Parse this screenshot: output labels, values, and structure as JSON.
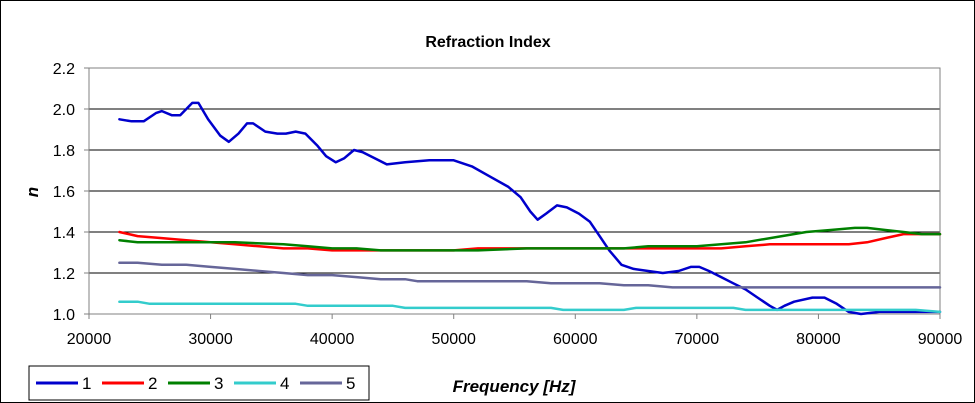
{
  "chart_data": {
    "type": "line",
    "title": "Refraction Index",
    "xlabel": "Frequency [Hz]",
    "ylabel": "n",
    "xlim": [
      20000,
      90000
    ],
    "ylim": [
      1.0,
      2.2
    ],
    "x_ticks": [
      20000,
      30000,
      40000,
      50000,
      60000,
      70000,
      80000,
      90000
    ],
    "y_ticks": [
      1.0,
      1.2,
      1.4,
      1.6,
      1.8,
      2.0,
      2.2
    ],
    "x_tick_labels": [
      "20000",
      "30000",
      "40000",
      "50000",
      "60000",
      "70000",
      "80000",
      "90000"
    ],
    "y_tick_labels": [
      "1.0",
      "1.2",
      "1.4",
      "1.6",
      "1.8",
      "2.0",
      "2.2"
    ],
    "grid": "horizontal",
    "legend_position": "bottom-left",
    "series": [
      {
        "name": "1",
        "color": "#0000cc",
        "points": [
          [
            22500,
            1.95
          ],
          [
            23500,
            1.94
          ],
          [
            24500,
            1.94
          ],
          [
            25500,
            1.98
          ],
          [
            26000,
            1.99
          ],
          [
            26800,
            1.97
          ],
          [
            27500,
            1.97
          ],
          [
            28500,
            2.03
          ],
          [
            29000,
            2.03
          ],
          [
            29800,
            1.95
          ],
          [
            30800,
            1.87
          ],
          [
            31500,
            1.84
          ],
          [
            32300,
            1.88
          ],
          [
            33000,
            1.93
          ],
          [
            33500,
            1.93
          ],
          [
            34500,
            1.89
          ],
          [
            35500,
            1.88
          ],
          [
            36200,
            1.88
          ],
          [
            37000,
            1.89
          ],
          [
            37800,
            1.88
          ],
          [
            38800,
            1.82
          ],
          [
            39500,
            1.77
          ],
          [
            40300,
            1.74
          ],
          [
            41000,
            1.76
          ],
          [
            41800,
            1.8
          ],
          [
            42500,
            1.79
          ],
          [
            43500,
            1.76
          ],
          [
            44500,
            1.73
          ],
          [
            46000,
            1.74
          ],
          [
            48000,
            1.75
          ],
          [
            50000,
            1.75
          ],
          [
            51500,
            1.72
          ],
          [
            53000,
            1.67
          ],
          [
            54500,
            1.62
          ],
          [
            55500,
            1.57
          ],
          [
            56300,
            1.5
          ],
          [
            56900,
            1.46
          ],
          [
            57600,
            1.49
          ],
          [
            58500,
            1.53
          ],
          [
            59300,
            1.52
          ],
          [
            60300,
            1.49
          ],
          [
            61200,
            1.45
          ],
          [
            62000,
            1.38
          ],
          [
            62800,
            1.31
          ],
          [
            63800,
            1.24
          ],
          [
            64800,
            1.22
          ],
          [
            66000,
            1.21
          ],
          [
            67200,
            1.2
          ],
          [
            68500,
            1.21
          ],
          [
            69500,
            1.23
          ],
          [
            70200,
            1.23
          ],
          [
            71000,
            1.21
          ],
          [
            72000,
            1.18
          ],
          [
            73000,
            1.15
          ],
          [
            74000,
            1.12
          ],
          [
            75000,
            1.08
          ],
          [
            76000,
            1.04
          ],
          [
            76600,
            1.02
          ],
          [
            77200,
            1.04
          ],
          [
            78000,
            1.06
          ],
          [
            79500,
            1.08
          ],
          [
            80500,
            1.08
          ],
          [
            81500,
            1.05
          ],
          [
            82500,
            1.01
          ],
          [
            83500,
            1.0
          ],
          [
            85000,
            1.01
          ],
          [
            87000,
            1.01
          ],
          [
            89000,
            1.01
          ],
          [
            90000,
            1.01
          ]
        ]
      },
      {
        "name": "2",
        "color": "#ff0000",
        "points": [
          [
            22500,
            1.4
          ],
          [
            24000,
            1.38
          ],
          [
            26000,
            1.37
          ],
          [
            28000,
            1.36
          ],
          [
            30000,
            1.35
          ],
          [
            32000,
            1.34
          ],
          [
            34000,
            1.33
          ],
          [
            36000,
            1.32
          ],
          [
            38000,
            1.32
          ],
          [
            40000,
            1.31
          ],
          [
            44000,
            1.31
          ],
          [
            50000,
            1.31
          ],
          [
            52000,
            1.32
          ],
          [
            56000,
            1.32
          ],
          [
            60000,
            1.32
          ],
          [
            64000,
            1.32
          ],
          [
            68000,
            1.32
          ],
          [
            72000,
            1.32
          ],
          [
            74000,
            1.33
          ],
          [
            76000,
            1.34
          ],
          [
            80000,
            1.34
          ],
          [
            82500,
            1.34
          ],
          [
            84000,
            1.35
          ],
          [
            85500,
            1.37
          ],
          [
            87000,
            1.39
          ],
          [
            88500,
            1.39
          ],
          [
            90000,
            1.39
          ]
        ]
      },
      {
        "name": "3",
        "color": "#008000",
        "points": [
          [
            22500,
            1.36
          ],
          [
            24000,
            1.35
          ],
          [
            28000,
            1.35
          ],
          [
            32000,
            1.35
          ],
          [
            36000,
            1.34
          ],
          [
            38000,
            1.33
          ],
          [
            40000,
            1.32
          ],
          [
            42000,
            1.32
          ],
          [
            44000,
            1.31
          ],
          [
            48000,
            1.31
          ],
          [
            52000,
            1.31
          ],
          [
            56000,
            1.32
          ],
          [
            60000,
            1.32
          ],
          [
            64000,
            1.32
          ],
          [
            66000,
            1.33
          ],
          [
            70000,
            1.33
          ],
          [
            72000,
            1.34
          ],
          [
            74000,
            1.35
          ],
          [
            75000,
            1.36
          ],
          [
            77000,
            1.38
          ],
          [
            79000,
            1.4
          ],
          [
            81000,
            1.41
          ],
          [
            83000,
            1.42
          ],
          [
            84000,
            1.42
          ],
          [
            85500,
            1.41
          ],
          [
            87000,
            1.4
          ],
          [
            88500,
            1.39
          ],
          [
            90000,
            1.39
          ]
        ]
      },
      {
        "name": "4",
        "color": "#33cccc",
        "points": [
          [
            22500,
            1.06
          ],
          [
            24000,
            1.06
          ],
          [
            25000,
            1.05
          ],
          [
            30000,
            1.05
          ],
          [
            35000,
            1.05
          ],
          [
            37000,
            1.05
          ],
          [
            38000,
            1.04
          ],
          [
            45000,
            1.04
          ],
          [
            46000,
            1.03
          ],
          [
            55000,
            1.03
          ],
          [
            58000,
            1.03
          ],
          [
            59000,
            1.02
          ],
          [
            64000,
            1.02
          ],
          [
            65000,
            1.03
          ],
          [
            70000,
            1.03
          ],
          [
            73000,
            1.03
          ],
          [
            74000,
            1.02
          ],
          [
            85000,
            1.02
          ],
          [
            88000,
            1.02
          ],
          [
            90000,
            1.01
          ]
        ]
      },
      {
        "name": "5",
        "color": "#666699",
        "points": [
          [
            22500,
            1.25
          ],
          [
            24000,
            1.25
          ],
          [
            26000,
            1.24
          ],
          [
            28000,
            1.24
          ],
          [
            30000,
            1.23
          ],
          [
            32000,
            1.22
          ],
          [
            34000,
            1.21
          ],
          [
            36000,
            1.2
          ],
          [
            38000,
            1.19
          ],
          [
            40000,
            1.19
          ],
          [
            42000,
            1.18
          ],
          [
            44000,
            1.17
          ],
          [
            46000,
            1.17
          ],
          [
            47000,
            1.16
          ],
          [
            50000,
            1.16
          ],
          [
            56000,
            1.16
          ],
          [
            58000,
            1.15
          ],
          [
            62000,
            1.15
          ],
          [
            64000,
            1.14
          ],
          [
            66000,
            1.14
          ],
          [
            68000,
            1.13
          ],
          [
            72000,
            1.13
          ],
          [
            80000,
            1.13
          ],
          [
            90000,
            1.13
          ]
        ]
      }
    ]
  }
}
